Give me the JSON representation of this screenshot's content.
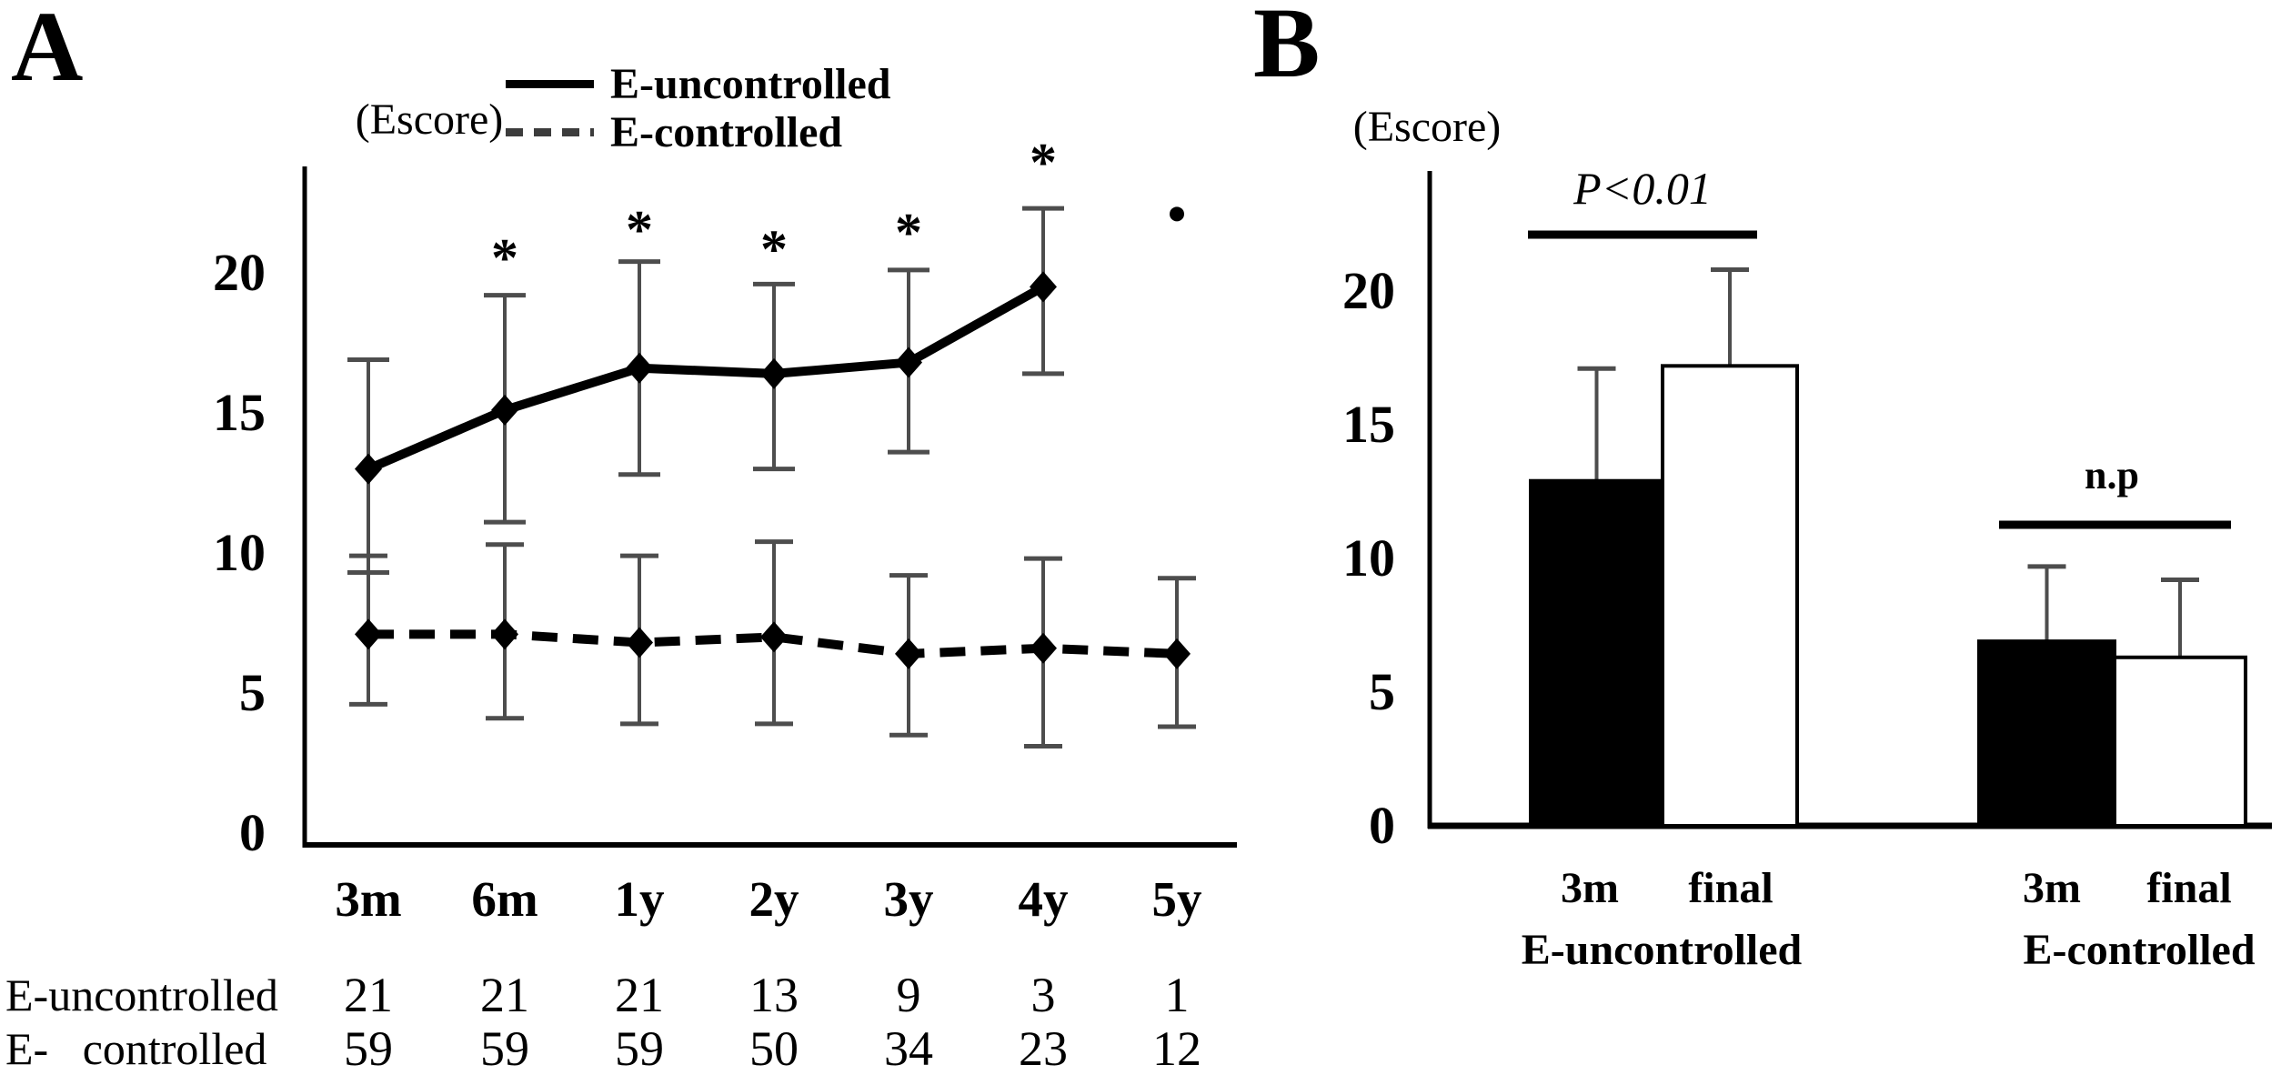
{
  "panels": {
    "a_label": "A",
    "b_label": "B"
  },
  "colors": {
    "background": "#ffffff",
    "ink": "#000000",
    "errorbar": "#4d4d4d"
  },
  "chart_data": [
    {
      "id": "A",
      "type": "line",
      "title": "",
      "ylabel": "(Escore)",
      "xlabel": "",
      "categories": [
        "3m",
        "6m",
        "1y",
        "2y",
        "3y",
        "4y",
        "5y"
      ],
      "yticks": [
        0,
        5,
        10,
        15,
        20
      ],
      "ylim": [
        0,
        24
      ],
      "grid": false,
      "legend_position": "top",
      "series": [
        {
          "name": "E-uncontrolled",
          "style": "solid",
          "marker": "diamond",
          "values": [
            13.0,
            15.1,
            16.6,
            16.4,
            16.8,
            19.5,
            null
          ],
          "err_up": [
            3.9,
            4.1,
            3.8,
            3.2,
            3.3,
            2.8,
            null
          ],
          "err_down": [
            3.7,
            4.0,
            3.8,
            3.4,
            3.2,
            3.1,
            null
          ]
        },
        {
          "name": "E-controlled",
          "style": "dashed",
          "marker": "diamond",
          "values": [
            7.1,
            7.1,
            6.8,
            7.0,
            6.4,
            6.6,
            6.4
          ],
          "err_up": [
            2.8,
            3.2,
            3.1,
            3.4,
            2.8,
            3.2,
            2.7
          ],
          "err_down": [
            2.5,
            3.0,
            2.9,
            3.1,
            2.9,
            3.5,
            2.6
          ]
        }
      ],
      "annotations": [
        {
          "category": "6m",
          "y": 20.8,
          "text": "*",
          "shape": "asterisk"
        },
        {
          "category": "1y",
          "y": 21.8,
          "text": "*",
          "shape": "asterisk"
        },
        {
          "category": "2y",
          "y": 21.1,
          "text": "*",
          "shape": "asterisk"
        },
        {
          "category": "3y",
          "y": 21.7,
          "text": "*",
          "shape": "asterisk"
        },
        {
          "category": "4y",
          "y": 24.2,
          "text": "*",
          "shape": "asterisk"
        },
        {
          "category": "5y",
          "y": 22.1,
          "text": "•",
          "shape": "dot"
        }
      ],
      "n_table": {
        "rows": [
          {
            "label": "E-uncontrolled",
            "values": [
              "21",
              "21",
              "21",
              "13",
              "9",
              "3",
              "1"
            ]
          },
          {
            "label": "E-   controlled",
            "values": [
              "59",
              "59",
              "59",
              "50",
              "34",
              "23",
              "12"
            ]
          }
        ]
      }
    },
    {
      "id": "B",
      "type": "bar",
      "title": "",
      "ylabel": "(Escore)",
      "xlabel": "",
      "yticks": [
        0,
        5,
        10,
        15,
        20
      ],
      "ylim": [
        0,
        24
      ],
      "grid": false,
      "groups": [
        {
          "name": "E-uncontrolled",
          "sig": "P<0.01",
          "bars": [
            {
              "label": "3m",
              "value": 12.9,
              "err_up": 4.2,
              "fill": "black"
            },
            {
              "label": "final",
              "value": 17.2,
              "err_up": 3.6,
              "fill": "white"
            }
          ]
        },
        {
          "name": "E-controlled",
          "sig": "n.p",
          "bars": [
            {
              "label": "3m",
              "value": 6.9,
              "err_up": 2.8,
              "fill": "black"
            },
            {
              "label": "final",
              "value": 6.3,
              "err_up": 2.9,
              "fill": "white"
            }
          ]
        }
      ]
    }
  ]
}
